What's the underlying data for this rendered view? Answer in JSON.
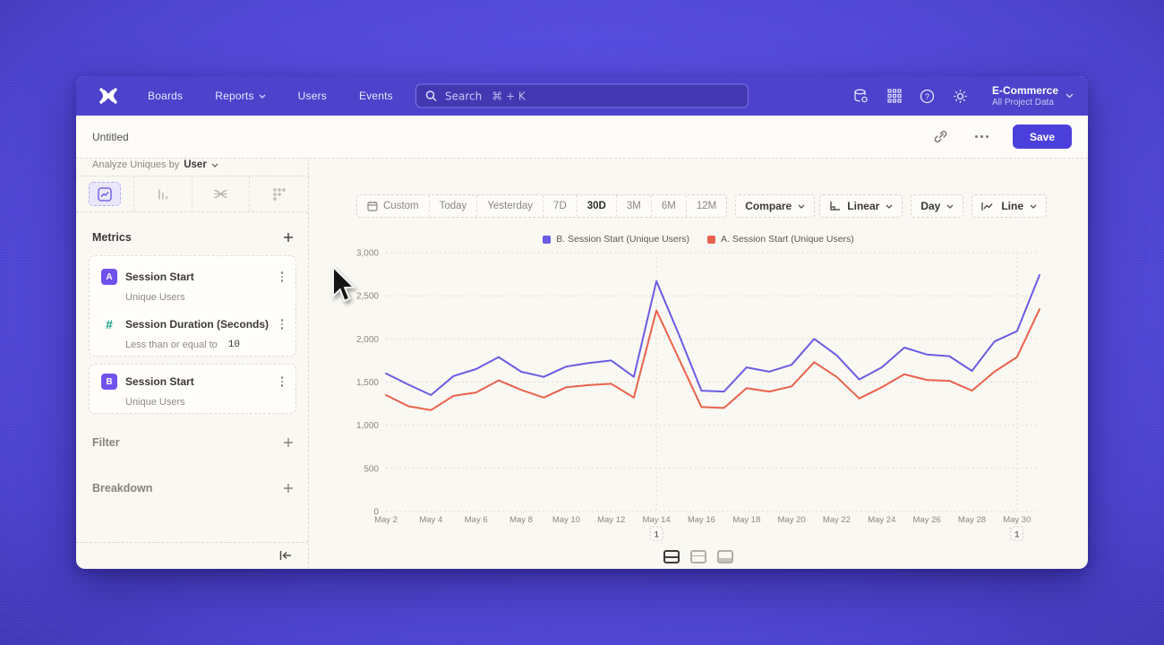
{
  "navbar": {
    "items": [
      {
        "label": "Boards"
      },
      {
        "label": "Reports",
        "caret": true
      },
      {
        "label": "Users"
      },
      {
        "label": "Events"
      }
    ],
    "search": {
      "label": "Search",
      "shortcut": "⌘ + K"
    },
    "project": {
      "name": "E-Commerce",
      "scope": "All Project Data"
    }
  },
  "toolbar": {
    "title": "Untitled",
    "save_label": "Save"
  },
  "sidebar": {
    "analyze_label": "Analyze Uniques by",
    "analyze_value": "User",
    "metrics": {
      "title": "Metrics",
      "cards": [
        {
          "items": [
            {
              "badge": "A",
              "badge_style": "badge-purple",
              "name": "Session Start",
              "subtitle": "Unique Users"
            },
            {
              "badge": "#",
              "badge_style": "badge-green",
              "name": "Session Duration (Seconds)",
              "subtitle": "Less than or equal to",
              "subtitle_value": "10"
            }
          ]
        },
        {
          "items": [
            {
              "badge": "B",
              "badge_style": "badge-purple",
              "name": "Session Start",
              "subtitle": "Unique Users"
            }
          ]
        }
      ]
    },
    "sections": [
      {
        "title": "Filter"
      },
      {
        "title": "Breakdown"
      }
    ]
  },
  "controls": {
    "ranges": [
      {
        "label": "Custom",
        "cal_icon": true
      },
      {
        "label": "Today"
      },
      {
        "label": "Yesterday"
      },
      {
        "label": "7D"
      },
      {
        "label": "30D",
        "active": true
      },
      {
        "label": "3M"
      },
      {
        "label": "6M"
      },
      {
        "label": "12M"
      }
    ],
    "compare_label": "Compare",
    "view_options": [
      {
        "label": "Linear",
        "axis_icon": true
      },
      {
        "label": "Day"
      },
      {
        "label": "Line",
        "line_icon": true
      }
    ]
  },
  "chart_data": {
    "type": "line",
    "title": "",
    "xlabel": "",
    "ylabel": "",
    "x": [
      "May 2",
      "May 3",
      "May 4",
      "May 5",
      "May 6",
      "May 7",
      "May 8",
      "May 9",
      "May 10",
      "May 11",
      "May 12",
      "May 13",
      "May 14",
      "May 15",
      "May 16",
      "May 17",
      "May 18",
      "May 19",
      "May 20",
      "May 21",
      "May 22",
      "May 23",
      "May 24",
      "May 25",
      "May 26",
      "May 27",
      "May 28",
      "May 29",
      "May 30",
      "May 31"
    ],
    "x_labels_every": 2,
    "series": [
      {
        "name": "B. Session Start (Unique Users)",
        "color": "#6a5ce4",
        "values": [
          1600,
          1470,
          1350,
          1570,
          1650,
          1790,
          1620,
          1560,
          1680,
          1720,
          1750,
          1560,
          2670,
          2050,
          1400,
          1390,
          1670,
          1620,
          1700,
          2000,
          1810,
          1530,
          1670,
          1900,
          1820,
          1800,
          1630,
          1970,
          2090,
          2740
        ]
      },
      {
        "name": "A. Session Start (Unique Users)",
        "color": "#e8624c",
        "values": [
          1350,
          1220,
          1175,
          1340,
          1380,
          1520,
          1410,
          1320,
          1440,
          1465,
          1480,
          1320,
          2330,
          1770,
          1210,
          1200,
          1430,
          1390,
          1450,
          1730,
          1560,
          1310,
          1440,
          1590,
          1525,
          1515,
          1400,
          1620,
          1790,
          2345
        ]
      }
    ],
    "ylim": [
      0,
      3000
    ],
    "yticks": [
      0,
      500,
      1000,
      1500,
      2000,
      2500,
      3000
    ],
    "grid": "dashed",
    "legend_position": "top-center",
    "annotations": [
      {
        "x": "May 14",
        "label": "1"
      },
      {
        "x": "May 30",
        "label": "1"
      }
    ]
  }
}
